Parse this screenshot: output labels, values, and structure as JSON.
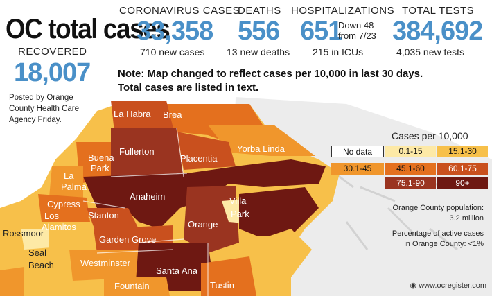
{
  "title": "OC total cases",
  "stats": {
    "cases": {
      "label": "CORONAVIRUS CASES",
      "value": "33,358",
      "sub": "710 new cases"
    },
    "deaths": {
      "label": "DEATHS",
      "value": "556",
      "sub": "13 new deaths"
    },
    "hospitalizations": {
      "label": "HOSPITALIZATIONS",
      "value": "651",
      "change_line1": "Down 48",
      "change_line2": "from 7/23",
      "sub": "215 in ICUs"
    },
    "tests": {
      "label": "TOTAL TESTS",
      "value": "384,692",
      "sub": "4,035 new tests"
    },
    "recovered": {
      "label": "RECOVERED",
      "value": "18,007"
    }
  },
  "posted": "Posted by Orange County Health Care Agency Friday.",
  "note_line1": "Note: Map changed to reflect cases per 10,000 in last 30 days.",
  "note_line2": "Total cases are listed in text.",
  "legend": {
    "title": "Cases per 10,000",
    "items": [
      {
        "label": "No data",
        "color": "#ffffff"
      },
      {
        "label": "0.1-15",
        "color": "#fde9a6"
      },
      {
        "label": "15.1-30",
        "color": "#f7c04a"
      },
      {
        "label": "30.1-45",
        "color": "#f0962c"
      },
      {
        "label": "45.1-60",
        "color": "#e4701e"
      },
      {
        "label": "60.1-75",
        "color": "#c9501e"
      },
      {
        "label": "75.1-90",
        "color": "#9a3420"
      },
      {
        "label": "90+",
        "color": "#6e1812"
      }
    ]
  },
  "population_line1": "Orange County population:",
  "population_line2": "3.2 million",
  "active_line1": "Percentage of active cases",
  "active_line2": "in Orange County: <1%",
  "credit": "www.ocregister.com",
  "cities": [
    "La Habra",
    "Brea",
    "Fullerton",
    "Placentia",
    "Yorba Linda",
    "Buena",
    "Park",
    "La",
    "Palma",
    "Anaheim",
    "Cypress",
    "Los",
    "Alamitos",
    "Stanton",
    "Villa",
    "Park",
    "Orange",
    "Rossmoor",
    "Garden Grove",
    "Seal",
    "Beach",
    "Westminster",
    "Santa Ana",
    "Fountain",
    "Tustin"
  ]
}
